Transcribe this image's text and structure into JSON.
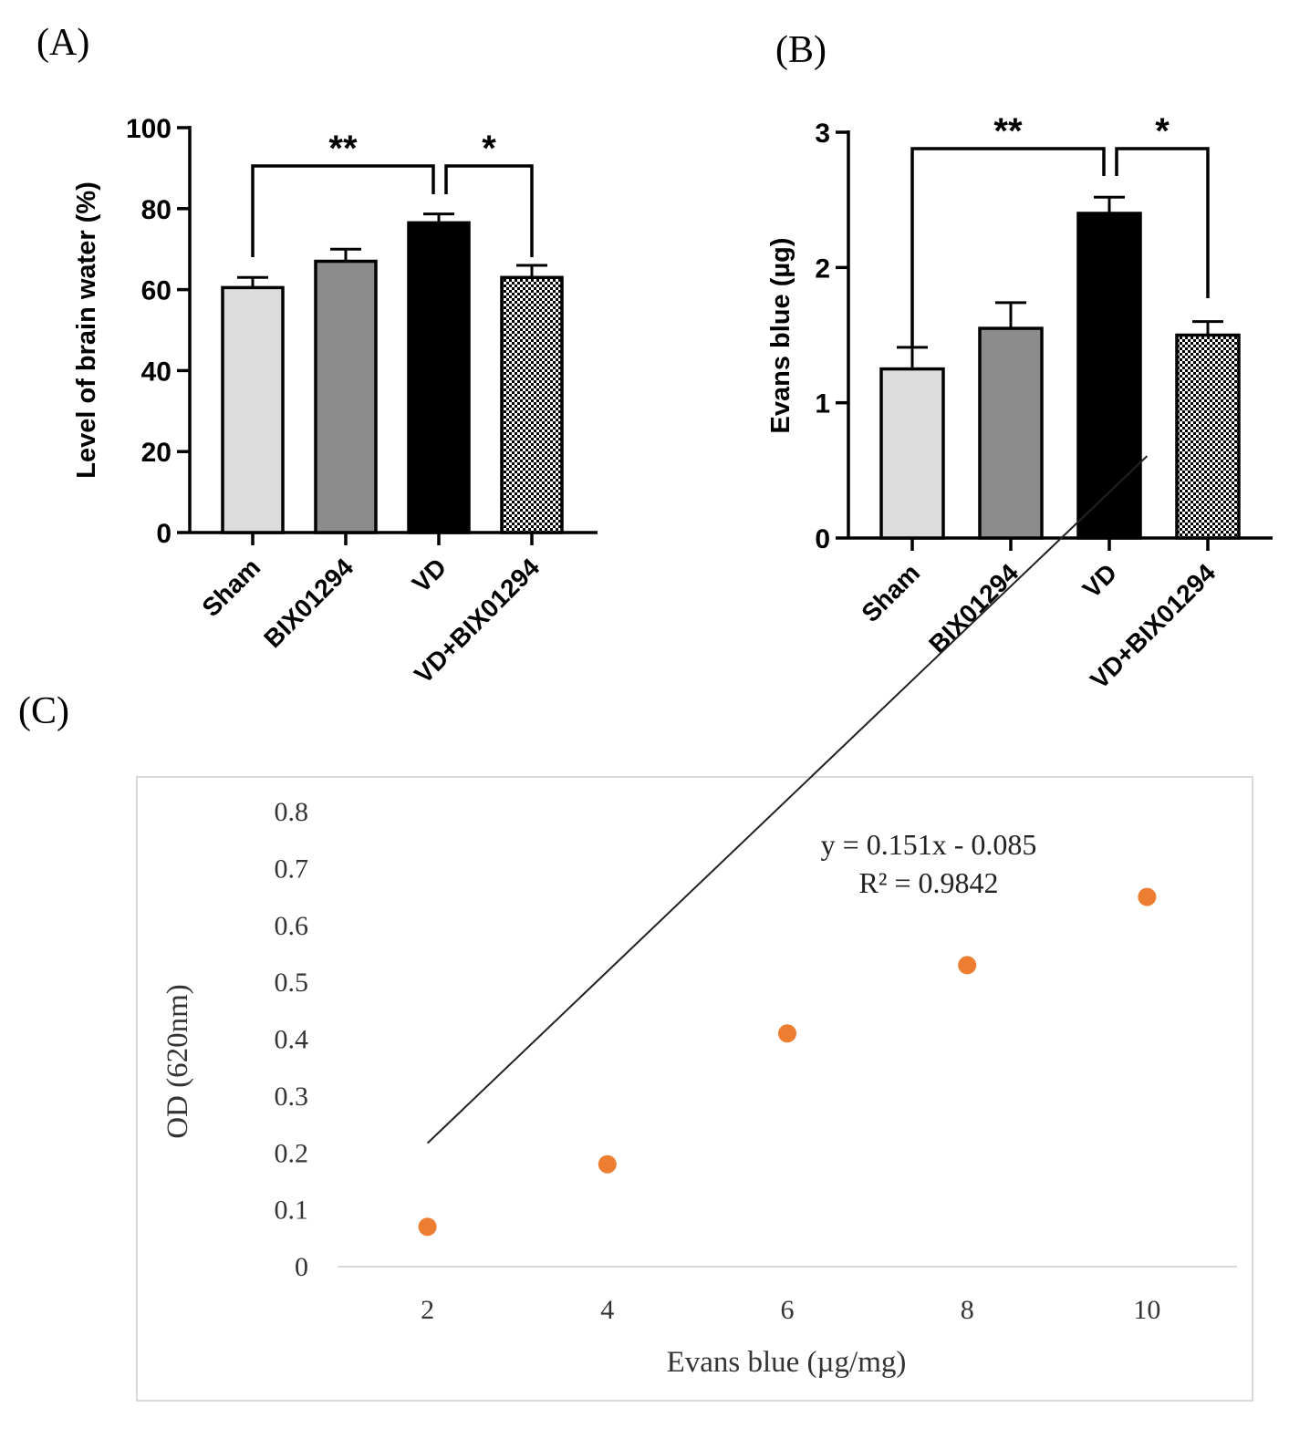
{
  "panels": {
    "a": "(A)",
    "b": "(B)",
    "c": "(C)"
  },
  "chart_data": [
    {
      "type": "bar",
      "ylabel": "Level of brain water (%)",
      "categories": [
        "Sham",
        "BIX01294",
        "VD",
        "VD+BIX01294"
      ],
      "values": [
        60.5,
        67,
        76.5,
        63
      ],
      "errors": [
        2.5,
        3,
        2.2,
        3
      ],
      "yticks": [
        0,
        20,
        40,
        60,
        80,
        100
      ],
      "ylim": [
        0,
        100
      ],
      "colors": [
        "#dcdcdc",
        "#8c8c8c",
        "#000000",
        "checker"
      ],
      "significance": [
        {
          "from": "Sham",
          "to": "VD",
          "label": "**"
        },
        {
          "from": "VD",
          "to": "VD+BIX01294",
          "label": "*"
        }
      ]
    },
    {
      "type": "bar",
      "ylabel": "Evans blue (µg)",
      "categories": [
        "Sham",
        "BIX01294",
        "VD",
        "VD+BIX01294"
      ],
      "values": [
        1.25,
        1.55,
        2.4,
        1.5
      ],
      "errors": [
        0.16,
        0.19,
        0.12,
        0.1
      ],
      "yticks": [
        0,
        1,
        2,
        3
      ],
      "ylim": [
        0,
        3
      ],
      "colors": [
        "#dcdcdc",
        "#8c8c8c",
        "#000000",
        "checker"
      ],
      "significance": [
        {
          "from": "Sham",
          "to": "VD",
          "label": "**"
        },
        {
          "from": "VD",
          "to": "VD+BIX01294",
          "label": "*"
        }
      ]
    },
    {
      "type": "scatter",
      "xlabel": "Evans blue (µg/mg)",
      "ylabel": "OD (620nm)",
      "x": [
        2,
        4,
        6,
        8,
        10
      ],
      "y": [
        0.07,
        0.18,
        0.41,
        0.53,
        0.65
      ],
      "xticks": [
        2,
        4,
        6,
        8,
        10
      ],
      "yticks": [
        "0",
        "0.1",
        "0.2",
        "0.3",
        "0.4",
        "0.5",
        "0.6",
        "0.7",
        "0.8"
      ],
      "ylim": [
        0,
        0.8
      ],
      "point_color": "#ed7d31",
      "trendline": {
        "slope": 0.151,
        "intercept": -0.085
      },
      "equation": "y = 0.151x - 0.085",
      "r2": "R² = 0.9842"
    }
  ]
}
